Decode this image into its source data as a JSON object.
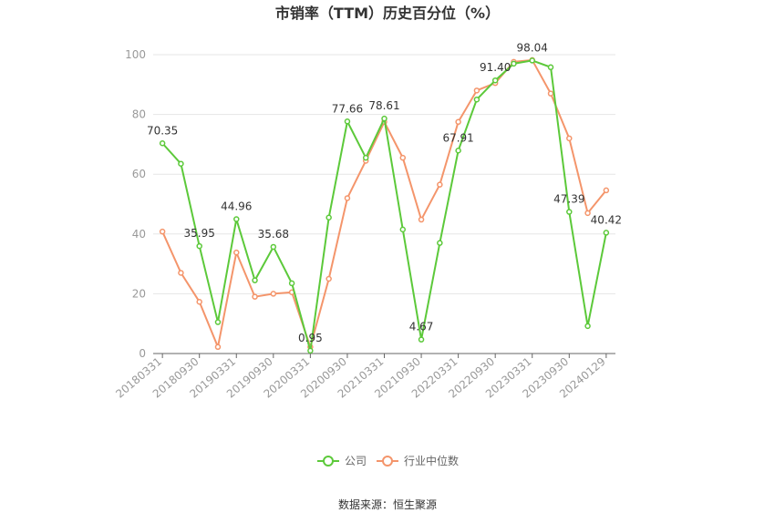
{
  "chart_data": {
    "type": "line",
    "title": "市销率（TTM）历史百分位（%）",
    "xlabel": "",
    "ylabel": "",
    "ylim": [
      0,
      100
    ],
    "yticks": [
      0,
      20,
      40,
      60,
      80,
      100
    ],
    "grid": true,
    "legend_position": "bottom",
    "x": [
      "20180331",
      "20180630",
      "20180930",
      "20181231",
      "20190331",
      "20190630",
      "20190930",
      "20191231",
      "20200331",
      "20200630",
      "20200930",
      "20201231",
      "20210331",
      "20210630",
      "20210930",
      "20211231",
      "20220331",
      "20220630",
      "20220930",
      "20221231",
      "20230331",
      "20230630",
      "20230930",
      "20231231",
      "20240129"
    ],
    "x_tick_labels": [
      "20180331",
      "20180930",
      "20190331",
      "20190930",
      "20200331",
      "20200930",
      "20210331",
      "20210930",
      "20220331",
      "20220930",
      "20230331",
      "20230930",
      "20240129"
    ],
    "series": [
      {
        "name": "公司",
        "color": "#5cc93a",
        "values": [
          70.35,
          63.5,
          35.95,
          10.5,
          44.96,
          24.5,
          35.68,
          23.5,
          0.95,
          45.5,
          77.66,
          65.5,
          78.61,
          41.5,
          4.67,
          37,
          67.91,
          85,
          91.4,
          97,
          98.04,
          95.8,
          47.39,
          9.2,
          40.42
        ],
        "labels": {
          "0": "70.35",
          "2": "35.95",
          "4": "44.96",
          "6": "35.68",
          "8": "0.95",
          "10": "77.66",
          "12": "78.61",
          "14": "4.67",
          "16": "67.91",
          "18": "91.40",
          "20": "98.04",
          "22": "47.39",
          "24": "40.42"
        }
      },
      {
        "name": "行业中位数",
        "color": "#f4956b",
        "values": [
          40.8,
          27,
          17.3,
          2.2,
          33.8,
          19,
          20,
          20.5,
          2.2,
          25,
          52,
          64.5,
          77.5,
          65.5,
          44.8,
          56.5,
          77.5,
          88,
          90.5,
          97.6,
          98.2,
          87,
          72,
          47,
          54.6
        ]
      }
    ]
  },
  "source_text": "数据来源：恒生聚源"
}
